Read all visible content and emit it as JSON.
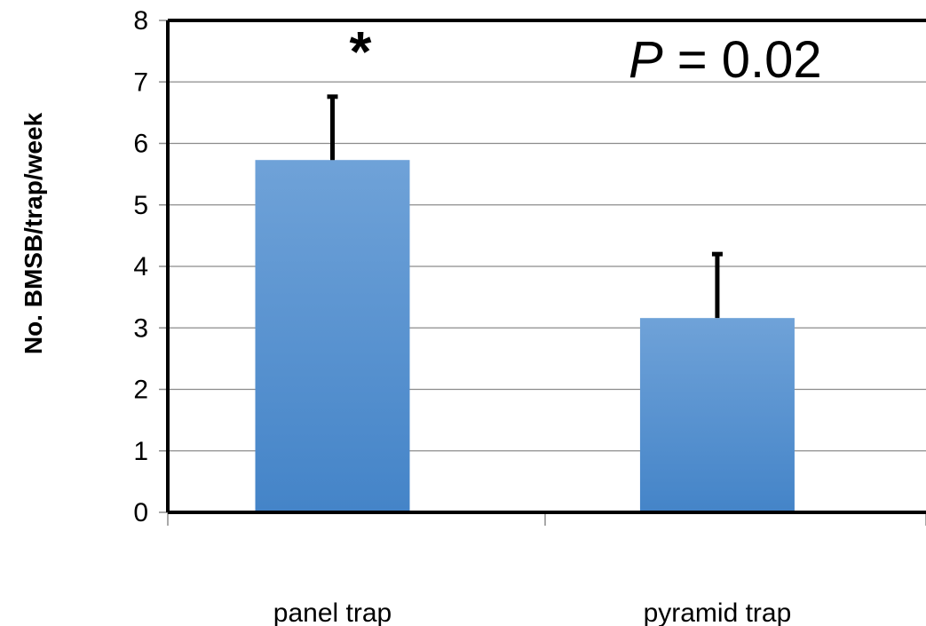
{
  "chart_data": {
    "type": "bar",
    "categories": [
      "panel trap",
      "pyramid trap"
    ],
    "values": [
      5.73,
      3.16
    ],
    "error_bars": [
      1.03,
      1.04
    ],
    "ylabel": "No. BMSB/trap/week",
    "xlabel": "",
    "ylim": [
      0,
      8
    ],
    "yticks": [
      "0",
      "1",
      "2",
      "3",
      "4",
      "5",
      "6",
      "7",
      "8"
    ],
    "grid": true,
    "legend": "none",
    "annotations": {
      "significance": "*",
      "p_label": "P",
      "p_text": " = 0.02"
    },
    "colors": {
      "bar_top": "#6fa2d8",
      "bar_bottom": "#4484c8",
      "grid": "#8c8c8c",
      "axis": "#000000"
    }
  }
}
